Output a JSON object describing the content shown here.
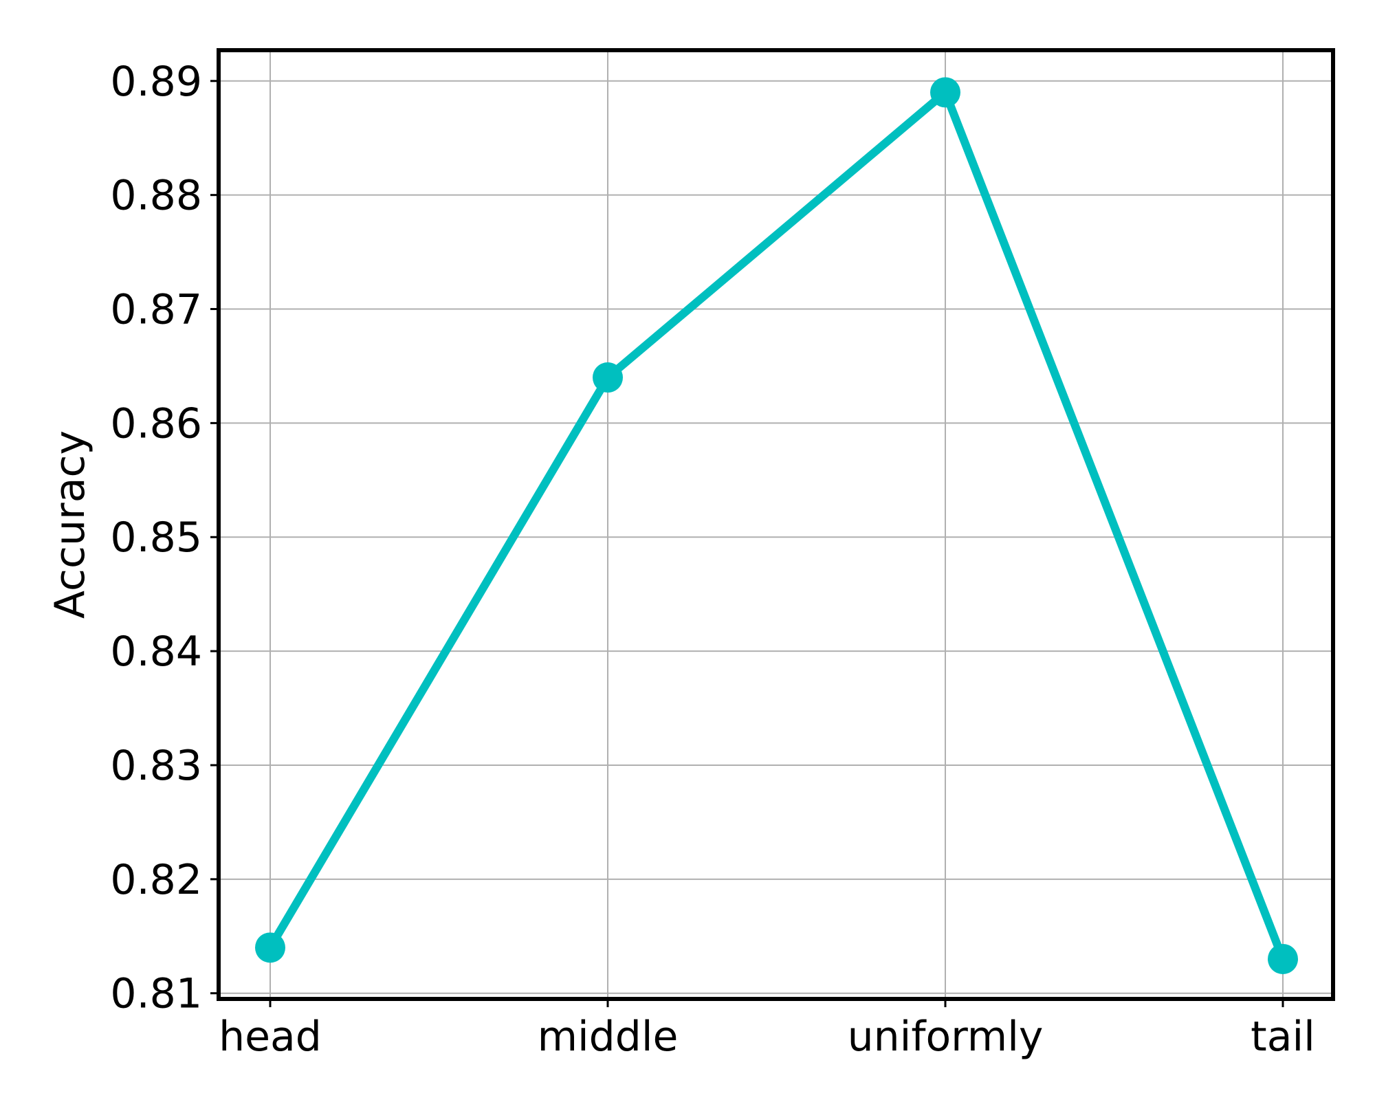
{
  "chart_data": {
    "type": "line",
    "title": "",
    "xlabel": "",
    "ylabel": "Accuracy",
    "categories": [
      "head",
      "middle",
      "uniformly",
      "tail"
    ],
    "series": [
      {
        "values": [
          0.814,
          0.864,
          0.889,
          0.813
        ],
        "color": "#00bfbf",
        "marker": "circle"
      }
    ],
    "ylim": [
      0.8095,
      0.8927
    ],
    "yticks": [
      0.81,
      0.82,
      0.83,
      0.84,
      0.85,
      0.86,
      0.87,
      0.88,
      0.89
    ],
    "ytick_labels": [
      "0.81",
      "0.82",
      "0.83",
      "0.84",
      "0.85",
      "0.86",
      "0.87",
      "0.88",
      "0.89"
    ],
    "grid": true,
    "legend": "none"
  }
}
